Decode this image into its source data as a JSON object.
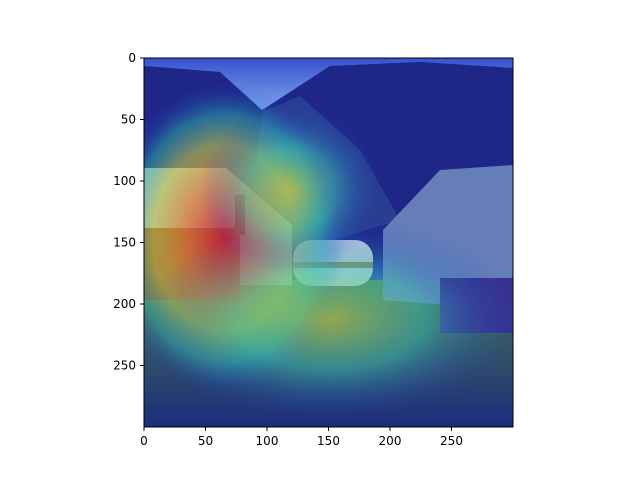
{
  "chart_data": {
    "type": "heatmap",
    "title": "",
    "xlabel": "",
    "ylabel": "",
    "xlim": [
      0,
      300
    ],
    "ylim": [
      300,
      0
    ],
    "x_ticks": [
      0,
      50,
      100,
      150,
      200,
      250
    ],
    "y_ticks": [
      0,
      50,
      100,
      150,
      200,
      250
    ],
    "y_inverted": true,
    "grid": false,
    "legend": "none",
    "colormap": "jet",
    "hotspots": [
      {
        "x": 60,
        "y": 145,
        "rx": 60,
        "ry": 95,
        "intensity": 1.0
      },
      {
        "x": 150,
        "y": 200,
        "rx": 95,
        "ry": 55,
        "intensity": 0.6
      },
      {
        "x": 120,
        "y": 120,
        "rx": 40,
        "ry": 40,
        "intensity": 0.5
      }
    ],
    "colors": {
      "sky": "#9db6e0",
      "mountains": "#2b2e6a",
      "grass": "#304a3a",
      "heat_hot": "#e8201c",
      "heat_warm": "#f0d020",
      "heat_mid": "#40e0a0",
      "heat_cool": "#1030c0"
    }
  }
}
